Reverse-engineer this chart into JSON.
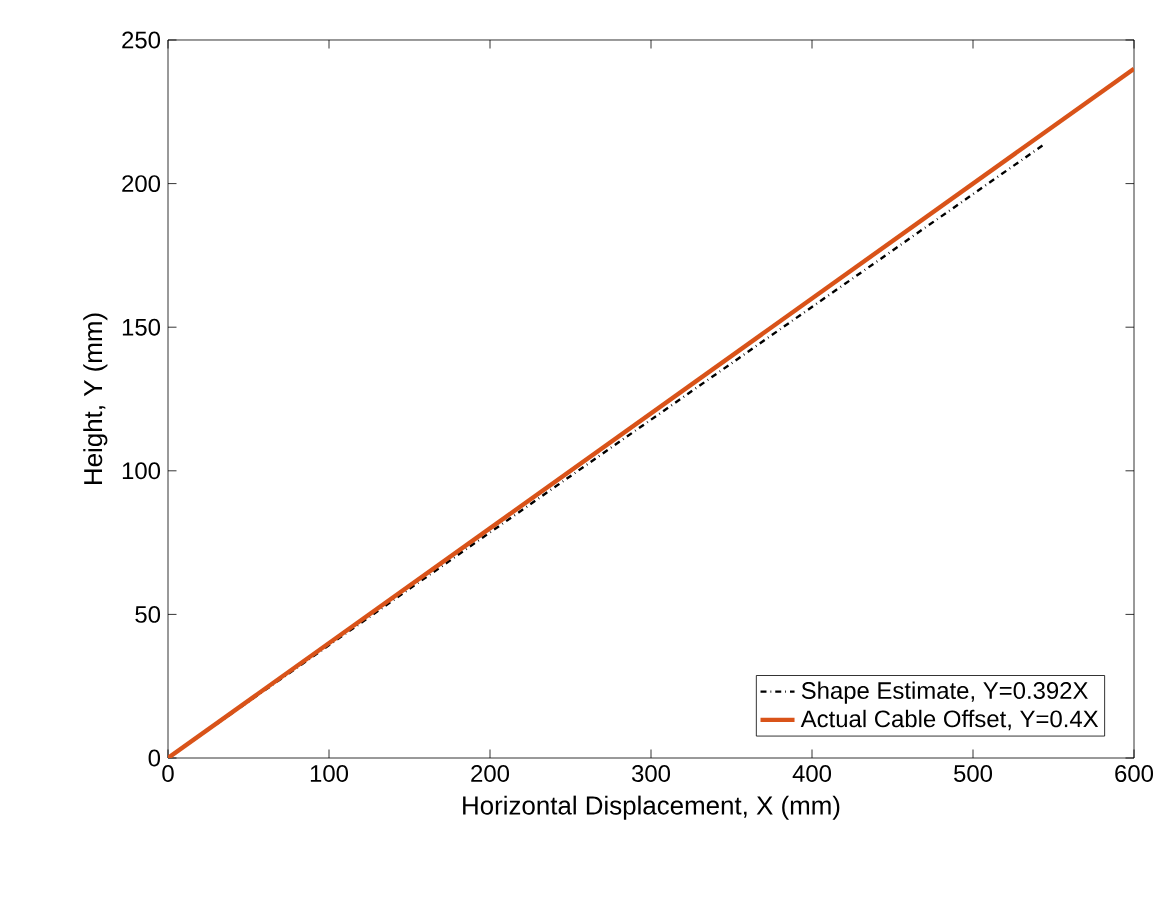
{
  "chart_data": {
    "type": "line",
    "xlabel": "Horizontal Displacement, X (mm)",
    "ylabel": "Height, Y (mm)",
    "xlim": [
      0,
      600
    ],
    "ylim": [
      0,
      250
    ],
    "xticks": [
      0,
      100,
      200,
      300,
      400,
      500,
      600
    ],
    "yticks": [
      0,
      50,
      100,
      150,
      200,
      250
    ],
    "legend": "bottom right",
    "grid": false,
    "marker": "none",
    "series": [
      {
        "name": "Shape Estimate, Y=0.392X",
        "color": "#000000",
        "line_style": "dashdot",
        "x": [
          0,
          545
        ],
        "values": [
          0,
          214
        ]
      },
      {
        "name": "Actual Cable Offset, Y=0.4X",
        "color": "#d95319",
        "line_style": "solid",
        "x": [
          0,
          600
        ],
        "values": [
          0,
          240
        ]
      }
    ]
  }
}
